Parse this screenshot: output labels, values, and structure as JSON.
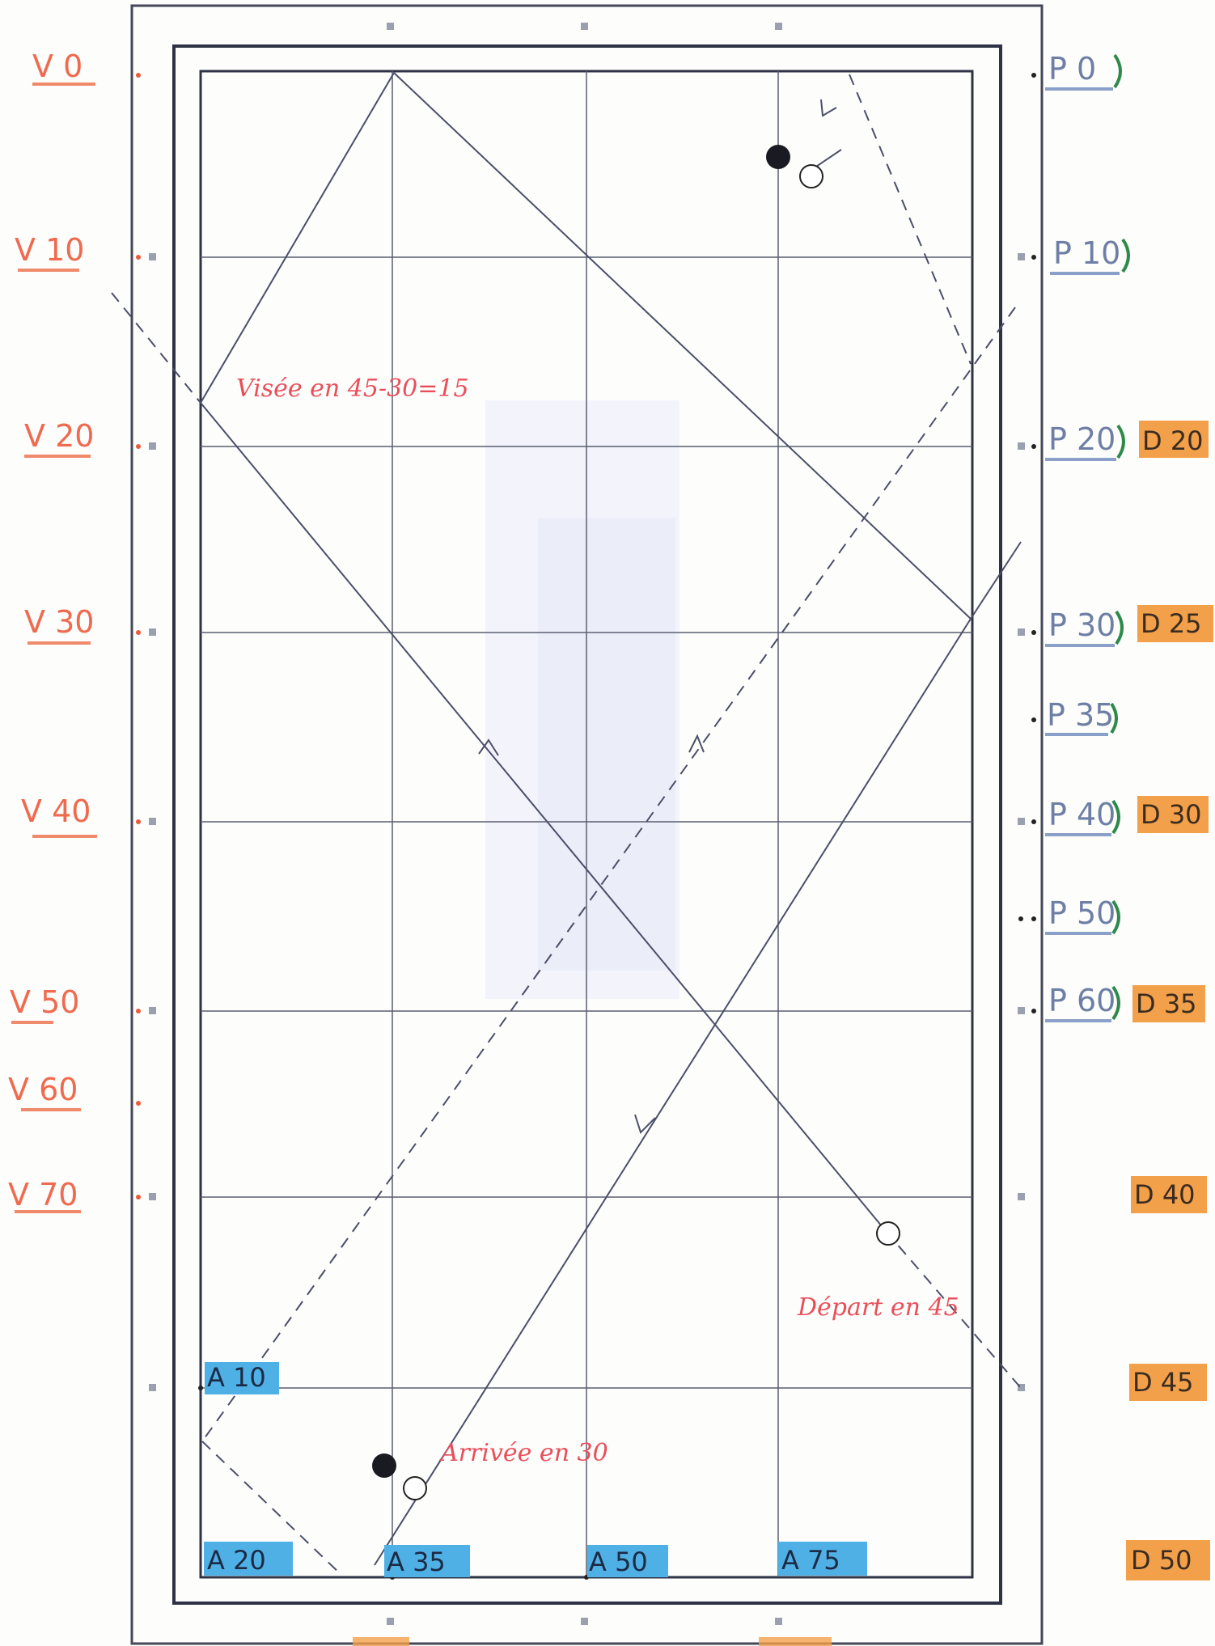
{
  "labels": {
    "left_v": [
      "V 0",
      "V 10",
      "V 20",
      "V 30",
      "V 40",
      "V 50",
      "V 60",
      "V 70"
    ],
    "right_p": [
      "P 0",
      "P 10",
      "P 20",
      "P 30",
      "P 35",
      "P 40",
      "P 50",
      "P 60"
    ],
    "right_d": [
      "D 20",
      "D 25",
      "D 30",
      "D 35",
      "D 40",
      "D 45",
      "D 50"
    ],
    "bottom_a": [
      "A 10",
      "A 20",
      "A 35",
      "A 50",
      "A 75"
    ]
  },
  "annotations": {
    "visee": "Visée en 45-30=15",
    "depart": "Départ en 45",
    "arrivee": "Arrivée en 30"
  },
  "colors": {
    "v_label": "#ef6a4e",
    "p_label": "#6e7fa6",
    "p_paren": "#2e8a4a",
    "d_highlight": "#f3a04b",
    "a_highlight": "#4fb0e6",
    "note": "#ea4e5a",
    "line": "#4a4f68",
    "ball_dark": "#1a1a22"
  }
}
